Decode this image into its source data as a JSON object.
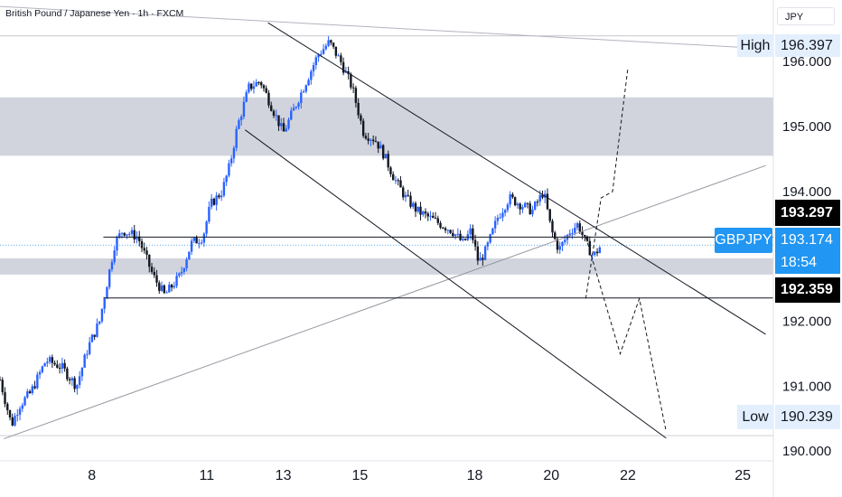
{
  "header": {
    "title": "British Pound / Japanese Yen · 1h · FXCM"
  },
  "currency_button": "JPY",
  "price_axis": {
    "ticks": [
      {
        "label": "196.000",
        "value": 196.0
      },
      {
        "label": "195.000",
        "value": 195.0
      },
      {
        "label": "194.000",
        "value": 194.0
      },
      {
        "label": "192.000",
        "value": 192.0
      },
      {
        "label": "191.000",
        "value": 191.0
      },
      {
        "label": "190.000",
        "value": 190.0
      }
    ]
  },
  "time_axis": {
    "ticks": [
      "8",
      "11",
      "13",
      "15",
      "18",
      "20",
      "22",
      "25"
    ]
  },
  "markers": {
    "high": {
      "label": "High",
      "value": "196.397"
    },
    "low": {
      "label": "Low",
      "value": "190.239"
    },
    "level_upper": {
      "value": "193.297"
    },
    "level_lower": {
      "value": "192.359"
    },
    "current": {
      "symbol": "GBPJPY",
      "value": "193.174",
      "countdown": "18:54"
    }
  },
  "colors": {
    "up": "#2962ff",
    "down": "#131722",
    "zone": "#d1d4dc",
    "tag_dark": "#000000",
    "tag_blue": "#2196f3",
    "tag_light": "#e3effd",
    "line": "#131722"
  },
  "chart_data": {
    "type": "candlestick",
    "title": "British Pound / Japanese Yen · 1h · FXCM",
    "xlabel": "",
    "ylabel": "",
    "ylim": [
      189.85,
      196.95
    ],
    "x_ticks": [
      "8",
      "11",
      "13",
      "15",
      "18",
      "20",
      "22",
      "25"
    ],
    "x_tick_positions_days": [
      8,
      11,
      13,
      15,
      18,
      20,
      22,
      25
    ],
    "x_range_days": [
      5.6,
      25.8
    ],
    "grid": false,
    "zones": [
      {
        "from": 194.55,
        "to": 195.45
      },
      {
        "from": 192.72,
        "to": 192.97
      }
    ],
    "levels": [
      193.297,
      192.359
    ],
    "channel_upper": [
      [
        12.6,
        196.6
      ],
      [
        25.6,
        191.8
      ]
    ],
    "channel_lower": [
      [
        12.0,
        194.95
      ],
      [
        23.0,
        190.2
      ]
    ],
    "support_trend": [
      [
        5.7,
        190.19
      ],
      [
        25.6,
        194.4
      ]
    ],
    "resistance_trend": [
      [
        5.6,
        196.85
      ],
      [
        25.6,
        196.2
      ]
    ],
    "projection_up": [
      [
        20.9,
        192.35
      ],
      [
        21.3,
        193.9
      ],
      [
        21.6,
        194.0
      ],
      [
        22.0,
        195.9
      ]
    ],
    "projection_down": [
      [
        20.9,
        193.3
      ],
      [
        21.8,
        191.5
      ],
      [
        22.3,
        192.35
      ],
      [
        23.0,
        190.3
      ]
    ],
    "path": [
      [
        5.6,
        191.1
      ],
      [
        5.9,
        190.4
      ],
      [
        6.1,
        190.7
      ],
      [
        6.4,
        190.9
      ],
      [
        6.8,
        191.4
      ],
      [
        7.2,
        191.3
      ],
      [
        7.6,
        191.0
      ],
      [
        7.9,
        191.6
      ],
      [
        8.2,
        192.0
      ],
      [
        8.4,
        192.6
      ],
      [
        8.6,
        193.2
      ],
      [
        8.8,
        193.4
      ],
      [
        9.2,
        193.3
      ],
      [
        9.4,
        193.0
      ],
      [
        9.6,
        192.7
      ],
      [
        9.9,
        192.4
      ],
      [
        10.3,
        192.7
      ],
      [
        10.6,
        193.2
      ],
      [
        10.9,
        193.3
      ],
      [
        11.1,
        193.8
      ],
      [
        11.4,
        194.0
      ],
      [
        11.6,
        194.4
      ],
      [
        11.8,
        195.0
      ],
      [
        12.1,
        195.6
      ],
      [
        12.4,
        195.7
      ],
      [
        12.7,
        195.3
      ],
      [
        13.0,
        194.9
      ],
      [
        13.3,
        195.3
      ],
      [
        13.6,
        195.7
      ],
      [
        13.9,
        196.1
      ],
      [
        14.2,
        196.3
      ],
      [
        14.5,
        196.0
      ],
      [
        14.8,
        195.6
      ],
      [
        15.1,
        194.9
      ],
      [
        15.4,
        194.8
      ],
      [
        15.6,
        194.6
      ],
      [
        15.9,
        194.2
      ],
      [
        16.2,
        193.9
      ],
      [
        16.5,
        193.7
      ],
      [
        16.8,
        193.6
      ],
      [
        17.1,
        193.5
      ],
      [
        17.4,
        193.4
      ],
      [
        17.7,
        193.2
      ],
      [
        17.9,
        193.4
      ],
      [
        18.1,
        192.9
      ],
      [
        18.3,
        193.1
      ],
      [
        18.6,
        193.6
      ],
      [
        18.9,
        193.9
      ],
      [
        19.2,
        193.8
      ],
      [
        19.5,
        193.7
      ],
      [
        19.8,
        194.0
      ],
      [
        20.0,
        193.4
      ],
      [
        20.2,
        193.1
      ],
      [
        20.5,
        193.4
      ],
      [
        20.7,
        193.5
      ],
      [
        20.9,
        193.2
      ],
      [
        21.1,
        193.0
      ],
      [
        21.3,
        193.17
      ]
    ]
  }
}
